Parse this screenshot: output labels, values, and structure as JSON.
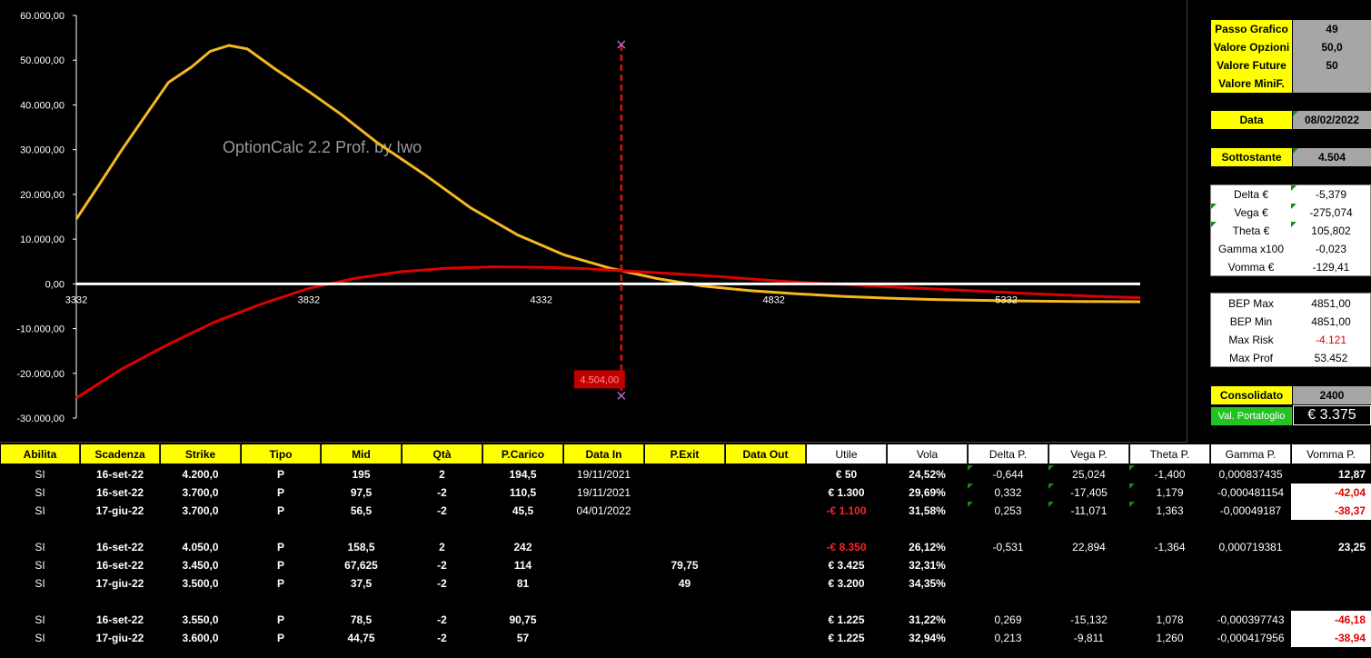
{
  "watermark": "OptionCalc 2.2 Prof. by Iwo",
  "chart_data": {
    "type": "line",
    "ylim": [
      -30000,
      60000
    ],
    "xlim": [
      3332,
      5620
    ],
    "y_ticks": [
      "60.000,00",
      "50.000,00",
      "40.000,00",
      "30.000,00",
      "20.000,00",
      "10.000,00",
      "0,00",
      "-10.000,00",
      "-20.000,00",
      "-30.000,00"
    ],
    "y_tick_values": [
      60000,
      50000,
      40000,
      30000,
      20000,
      10000,
      0,
      -10000,
      -20000,
      -30000
    ],
    "x_ticks": [
      "3332",
      "3832",
      "4332",
      "4832",
      "5332"
    ],
    "x_tick_values": [
      3332,
      3832,
      4332,
      4832,
      5332
    ],
    "series": [
      {
        "color": "#f5b820",
        "x": [
          3332,
          3380,
          3430,
          3480,
          3530,
          3580,
          3620,
          3660,
          3700,
          3760,
          3832,
          3900,
          3980,
          4080,
          4180,
          4280,
          4380,
          4480,
          4580,
          4680,
          4780,
          4880,
          4980,
          5080,
          5180,
          5280,
          5380,
          5480,
          5620
        ],
        "values": [
          14500,
          22000,
          30000,
          37500,
          45000,
          48500,
          52000,
          53300,
          52500,
          48000,
          43000,
          38000,
          31500,
          24500,
          17000,
          11000,
          6500,
          3500,
          1200,
          -500,
          -1500,
          -2200,
          -2800,
          -3200,
          -3500,
          -3700,
          -3850,
          -3950,
          -4000
        ]
      },
      {
        "color": "#dd0000",
        "x": [
          3332,
          3430,
          3530,
          3630,
          3730,
          3832,
          3930,
          4030,
          4130,
          4230,
          4332,
          4430,
          4530,
          4630,
          4730,
          4832,
          4930,
          5030,
          5130,
          5230,
          5332,
          5430,
          5530,
          5620
        ],
        "values": [
          -25500,
          -19000,
          -13500,
          -8500,
          -4500,
          -1000,
          1200,
          2700,
          3500,
          3800,
          3700,
          3400,
          2800,
          2200,
          1500,
          700,
          100,
          -400,
          -900,
          -1400,
          -1900,
          -2400,
          -2800,
          -3100
        ]
      }
    ],
    "marker": {
      "x": 4504,
      "label": "4.504,00",
      "y_top": 53500,
      "y_bottom": -25000
    }
  },
  "panel": {
    "passo_grafico": {
      "label": "Passo Grafico",
      "value": "49"
    },
    "valore_opzioni": {
      "label": "Valore Opzioni",
      "value": "50,0"
    },
    "valore_future": {
      "label": "Valore Future",
      "value": "50"
    },
    "valore_minif": {
      "label": "Valore MiniF.",
      "value": ""
    },
    "data": {
      "label": "Data",
      "value": "08/02/2022"
    },
    "sottostante": {
      "label": "Sottostante",
      "value": "4.504"
    },
    "greeks": [
      {
        "label": "Delta €",
        "value": "-5,379"
      },
      {
        "label": "Vega €",
        "value": "-275,074"
      },
      {
        "label": "Theta €",
        "value": "105,802"
      },
      {
        "label": "Gamma x100",
        "value": "-0,023"
      },
      {
        "label": "Vomma €",
        "value": "-129,41"
      }
    ],
    "risk": [
      {
        "label": "BEP Max",
        "value": "4851,00"
      },
      {
        "label": "BEP Min",
        "value": "4851,00"
      },
      {
        "label": "Max Risk",
        "value": "-4.121"
      },
      {
        "label": "Max Prof",
        "value": "53.452"
      }
    ],
    "consolidato": {
      "label": "Consolidato",
      "value": "2400"
    },
    "portafoglio": {
      "label": "Val. Portafoglio",
      "value": "€ 3.375"
    }
  },
  "table": {
    "headers": [
      "Abilita",
      "Scadenza",
      "Strike",
      "Tipo",
      "Mid",
      "Qtà",
      "P.Carico",
      "Data In",
      "P.Exit",
      "Data Out",
      "Utile",
      "Vola",
      "Delta P.",
      "Vega P.",
      "Theta P.",
      "Gamma P.",
      "Vomma P."
    ],
    "rows": [
      {
        "c": [
          "SI",
          "16-set-22",
          "4.200,0",
          "P",
          "195",
          "2",
          "194,5",
          "19/11/2021",
          "",
          "",
          "€ 50",
          "24,52%",
          "-0,644",
          "25,024",
          "-1,400",
          "0,000837435",
          "12,87"
        ],
        "neg": [
          false,
          false
        ]
      },
      {
        "c": [
          "SI",
          "16-set-22",
          "3.700,0",
          "P",
          "97,5",
          "-2",
          "110,5",
          "19/11/2021",
          "",
          "",
          "€ 1.300",
          "29,69%",
          "0,332",
          "-17,405",
          "1,179",
          "-0,000481154",
          "-42,04"
        ],
        "neg": [
          false,
          true
        ]
      },
      {
        "c": [
          "SI",
          "17-giu-22",
          "3.700,0",
          "P",
          "56,5",
          "-2",
          "45,5",
          "04/01/2022",
          "",
          "",
          "-€ 1.100",
          "31,58%",
          "0,253",
          "-11,071",
          "1,363",
          "-0,00049187",
          "-38,37"
        ],
        "neg": [
          true,
          true
        ]
      },
      {
        "c": [
          "SI",
          "16-set-22",
          "4.050,0",
          "P",
          "158,5",
          "2",
          "242",
          "",
          "",
          "",
          "-€ 8.350",
          "26,12%",
          "-0,531",
          "22,894",
          "-1,364",
          "0,000719381",
          "23,25"
        ],
        "neg": [
          true,
          false
        ]
      },
      {
        "c": [
          "SI",
          "16-set-22",
          "3.450,0",
          "P",
          "67,625",
          "-2",
          "114",
          "",
          "79,75",
          "",
          "€ 3.425",
          "32,31%",
          "",
          "",
          "",
          "",
          ""
        ],
        "neg": [
          false,
          false
        ]
      },
      {
        "c": [
          "SI",
          "17-giu-22",
          "3.500,0",
          "P",
          "37,5",
          "-2",
          "81",
          "",
          "49",
          "",
          "€ 3.200",
          "34,35%",
          "",
          "",
          "",
          "",
          ""
        ],
        "neg": [
          false,
          false
        ]
      },
      {
        "c": [
          "SI",
          "16-set-22",
          "3.550,0",
          "P",
          "78,5",
          "-2",
          "90,75",
          "",
          "",
          "",
          "€ 1.225",
          "31,22%",
          "0,269",
          "-15,132",
          "1,078",
          "-0,000397743",
          "-46,18"
        ],
        "neg": [
          false,
          true
        ]
      },
      {
        "c": [
          "SI",
          "17-giu-22",
          "3.600,0",
          "P",
          "44,75",
          "-2",
          "57",
          "",
          "",
          "",
          "€ 1.225",
          "32,94%",
          "0,213",
          "-9,811",
          "1,260",
          "-0,000417956",
          "-38,94"
        ],
        "neg": [
          false,
          true
        ]
      }
    ]
  }
}
